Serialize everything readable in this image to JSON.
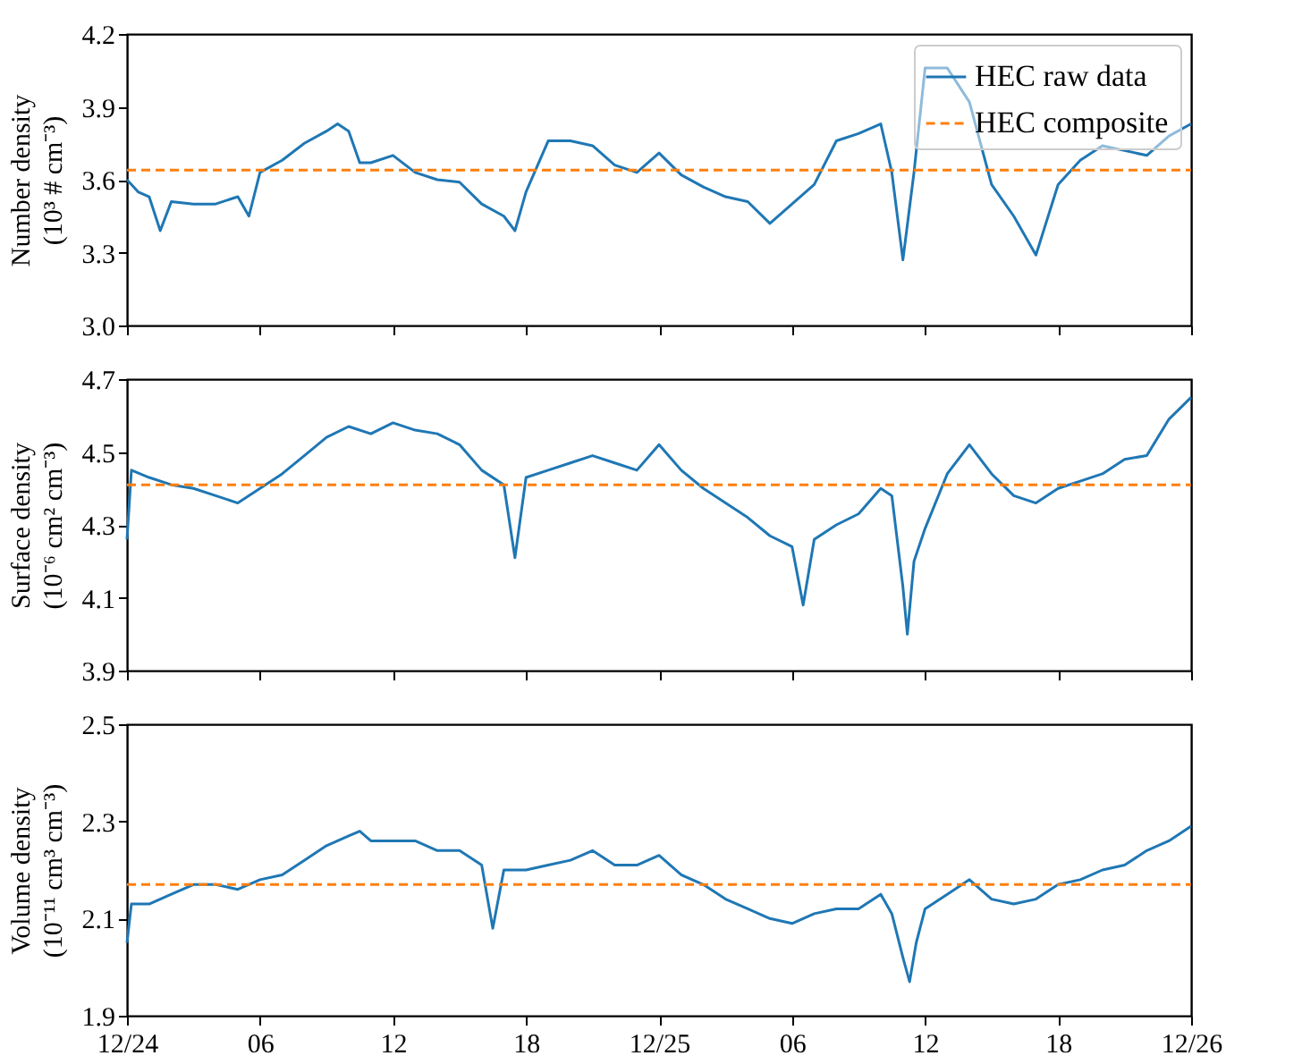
{
  "chart_data": [
    {
      "type": "line",
      "ylabel": "Number density\n(10³ # cm⁻³)",
      "xlim": [
        "--12-24T00:00",
        "--12-26T00:00"
      ],
      "xticks": [
        {
          "value": "--12-24T00:00",
          "label": "12/24"
        },
        {
          "value": "--12-24T06:00",
          "label": "06"
        },
        {
          "value": "--12-24T12:00",
          "label": "12"
        },
        {
          "value": "--12-24T18:00",
          "label": "18"
        },
        {
          "value": "--12-25T00:00",
          "label": "12/25"
        },
        {
          "value": "--12-25T06:00",
          "label": "06"
        },
        {
          "value": "--12-25T12:00",
          "label": "12"
        },
        {
          "value": "--12-25T18:00",
          "label": "18"
        },
        {
          "value": "--12-26T00:00",
          "label": "12/26"
        }
      ],
      "ylim": [
        3.0,
        4.2
      ],
      "yticks": [
        {
          "value": 3,
          "label": "3.0"
        },
        3.3,
        3.6,
        3.9,
        4.2
      ],
      "tick_labels": "y",
      "legend": "top right",
      "series": [
        {
          "name": "HEC raw data",
          "color": "#1f77b4",
          "line_style": "solid",
          "x": [
            "--12-24T00:00",
            "--12-24T00:30",
            "--12-24T01:00",
            "--12-24T01:30",
            "--12-24T02:00",
            "--12-24T03:00",
            "--12-24T04:00",
            "--12-24T05:00",
            "--12-24T05:30",
            "--12-24T06:00",
            "--12-24T07:00",
            "--12-24T08:00",
            "--12-24T09:00",
            "--12-24T09:30",
            "--12-24T10:00",
            "--12-24T10:30",
            "--12-24T11:00",
            "--12-24T12:00",
            "--12-24T13:00",
            "--12-24T14:00",
            "--12-24T15:00",
            "--12-24T16:00",
            "--12-24T17:00",
            "--12-24T17:30",
            "--12-24T18:00",
            "--12-24T19:00",
            "--12-24T20:00",
            "--12-24T21:00",
            "--12-24T22:00",
            "--12-24T23:00",
            "--12-25T00:00",
            "--12-25T01:00",
            "--12-25T02:00",
            "--12-25T03:00",
            "--12-25T04:00",
            "--12-25T05:00",
            "--12-25T06:00",
            "--12-25T07:00",
            "--12-25T08:00",
            "--12-25T09:00",
            "--12-25T10:00",
            "--12-25T10:30",
            "--12-25T11:00",
            "--12-25T11:30",
            "--12-25T12:00",
            "--12-25T13:00",
            "--12-25T14:00",
            "--12-25T15:00",
            "--12-25T16:00",
            "--12-25T17:00",
            "--12-25T18:00",
            "--12-25T19:00",
            "--12-25T20:00",
            "--12-25T21:00",
            "--12-25T22:00",
            "--12-25T23:00",
            "--12-26T00:00"
          ],
          "values": [
            3.6,
            3.55,
            3.53,
            3.39,
            3.51,
            3.5,
            3.5,
            3.53,
            3.45,
            3.63,
            3.68,
            3.75,
            3.8,
            3.83,
            3.8,
            3.67,
            3.67,
            3.7,
            3.63,
            3.6,
            3.59,
            3.5,
            3.45,
            3.39,
            3.55,
            3.76,
            3.76,
            3.74,
            3.66,
            3.63,
            3.71,
            3.62,
            3.57,
            3.53,
            3.51,
            3.42,
            3.5,
            3.58,
            3.76,
            3.79,
            3.83,
            3.63,
            3.27,
            3.63,
            4.06,
            4.06,
            3.92,
            3.58,
            3.45,
            3.29,
            3.58,
            3.68,
            3.74,
            3.72,
            3.7,
            3.78,
            3.83
          ]
        },
        {
          "name": "HEC composite",
          "color": "#ff7f0e",
          "line_style": "dashed",
          "x": [
            "--12-24T00:00",
            "--12-26T00:00"
          ],
          "values": [
            3.64,
            3.64
          ]
        }
      ]
    },
    {
      "type": "line",
      "ylabel": "Surface density\n(10⁻⁶ cm² cm⁻³)",
      "xlim": [
        "--12-24T00:00",
        "--12-26T00:00"
      ],
      "xticks": [
        {
          "value": "--12-24T00:00",
          "label": "12/24"
        },
        {
          "value": "--12-24T06:00",
          "label": "06"
        },
        {
          "value": "--12-24T12:00",
          "label": "12"
        },
        {
          "value": "--12-24T18:00",
          "label": "18"
        },
        {
          "value": "--12-25T00:00",
          "label": "12/25"
        },
        {
          "value": "--12-25T06:00",
          "label": "06"
        },
        {
          "value": "--12-25T12:00",
          "label": "12"
        },
        {
          "value": "--12-25T18:00",
          "label": "18"
        },
        {
          "value": "--12-26T00:00",
          "label": "12/26"
        }
      ],
      "ylim": [
        3.9,
        4.7
      ],
      "yticks": [
        3.9,
        4.1,
        4.3,
        4.5,
        4.7
      ],
      "tick_labels": "y",
      "series": [
        {
          "color": "#1f77b4",
          "line_style": "solid",
          "x": [
            "--12-24T00:00",
            "--12-24T00:12",
            "--12-24T01:00",
            "--12-24T02:00",
            "--12-24T03:00",
            "--12-24T04:00",
            "--12-24T05:00",
            "--12-24T06:00",
            "--12-24T07:00",
            "--12-24T08:00",
            "--12-24T09:00",
            "--12-24T10:00",
            "--12-24T11:00",
            "--12-24T12:00",
            "--12-24T13:00",
            "--12-24T14:00",
            "--12-24T15:00",
            "--12-24T16:00",
            "--12-24T17:00",
            "--12-24T17:30",
            "--12-24T18:00",
            "--12-24T19:00",
            "--12-24T20:00",
            "--12-24T21:00",
            "--12-24T22:00",
            "--12-24T23:00",
            "--12-25T00:00",
            "--12-25T01:00",
            "--12-25T02:00",
            "--12-25T03:00",
            "--12-25T04:00",
            "--12-25T05:00",
            "--12-25T06:00",
            "--12-25T06:30",
            "--12-25T07:00",
            "--12-25T08:00",
            "--12-25T09:00",
            "--12-25T10:00",
            "--12-25T10:30",
            "--12-25T11:00",
            "--12-25T11:12",
            "--12-25T11:30",
            "--12-25T12:00",
            "--12-25T13:00",
            "--12-25T14:00",
            "--12-25T15:00",
            "--12-25T16:00",
            "--12-25T17:00",
            "--12-25T18:00",
            "--12-25T19:00",
            "--12-25T20:00",
            "--12-25T21:00",
            "--12-25T22:00",
            "--12-25T23:00",
            "--12-26T00:00"
          ],
          "values": [
            4.26,
            4.45,
            4.43,
            4.41,
            4.4,
            4.38,
            4.36,
            4.4,
            4.44,
            4.49,
            4.54,
            4.57,
            4.55,
            4.58,
            4.56,
            4.55,
            4.52,
            4.45,
            4.41,
            4.21,
            4.43,
            4.45,
            4.47,
            4.49,
            4.47,
            4.45,
            4.52,
            4.45,
            4.4,
            4.36,
            4.32,
            4.27,
            4.24,
            4.08,
            4.26,
            4.3,
            4.33,
            4.4,
            4.38,
            4.13,
            4.0,
            4.2,
            4.29,
            4.44,
            4.52,
            4.44,
            4.38,
            4.36,
            4.4,
            4.42,
            4.44,
            4.48,
            4.49,
            4.59,
            4.65
          ]
        },
        {
          "color": "#ff7f0e",
          "line_style": "dashed",
          "x": [
            "--12-24T00:00",
            "--12-26T00:00"
          ],
          "values": [
            4.41,
            4.41
          ]
        }
      ]
    },
    {
      "type": "line",
      "ylabel": "Volume density\n(10⁻¹¹ cm³ cm⁻³)",
      "xlim": [
        "--12-24T00:00",
        "--12-26T00:00"
      ],
      "xticks": [
        {
          "value": "--12-24T00:00",
          "label": "12/24"
        },
        {
          "value": "--12-24T06:00",
          "label": "06"
        },
        {
          "value": "--12-24T12:00",
          "label": "12"
        },
        {
          "value": "--12-24T18:00",
          "label": "18"
        },
        {
          "value": "--12-25T00:00",
          "label": "12/25"
        },
        {
          "value": "--12-25T06:00",
          "label": "06"
        },
        {
          "value": "--12-25T12:00",
          "label": "12"
        },
        {
          "value": "--12-25T18:00",
          "label": "18"
        },
        {
          "value": "--12-26T00:00",
          "label": "12/26"
        }
      ],
      "ylim": [
        1.9,
        2.5
      ],
      "yticks": [
        1.9,
        2.1,
        2.3,
        2.5
      ],
      "series": [
        {
          "color": "#1f77b4",
          "line_style": "solid",
          "x": [
            "--12-24T00:00",
            "--12-24T00:12",
            "--12-24T01:00",
            "--12-24T02:00",
            "--12-24T03:00",
            "--12-24T04:00",
            "--12-24T05:00",
            "--12-24T06:00",
            "--12-24T07:00",
            "--12-24T08:00",
            "--12-24T09:00",
            "--12-24T10:00",
            "--12-24T10:30",
            "--12-24T11:00",
            "--12-24T12:00",
            "--12-24T13:00",
            "--12-24T14:00",
            "--12-24T15:00",
            "--12-24T16:00",
            "--12-24T16:30",
            "--12-24T17:00",
            "--12-24T18:00",
            "--12-24T19:00",
            "--12-24T20:00",
            "--12-24T21:00",
            "--12-24T22:00",
            "--12-24T23:00",
            "--12-25T00:00",
            "--12-25T01:00",
            "--12-25T02:00",
            "--12-25T03:00",
            "--12-25T04:00",
            "--12-25T05:00",
            "--12-25T06:00",
            "--12-25T07:00",
            "--12-25T08:00",
            "--12-25T09:00",
            "--12-25T10:00",
            "--12-25T10:30",
            "--12-25T11:00",
            "--12-25T11:18",
            "--12-25T11:36",
            "--12-25T12:00",
            "--12-25T13:00",
            "--12-25T14:00",
            "--12-25T15:00",
            "--12-25T16:00",
            "--12-25T17:00",
            "--12-25T18:00",
            "--12-25T19:00",
            "--12-25T20:00",
            "--12-25T21:00",
            "--12-25T22:00",
            "--12-25T23:00",
            "--12-26T00:00"
          ],
          "values": [
            2.05,
            2.13,
            2.13,
            2.15,
            2.17,
            2.17,
            2.16,
            2.18,
            2.19,
            2.22,
            2.25,
            2.27,
            2.28,
            2.26,
            2.26,
            2.26,
            2.24,
            2.24,
            2.21,
            2.08,
            2.2,
            2.2,
            2.21,
            2.22,
            2.24,
            2.21,
            2.21,
            2.23,
            2.19,
            2.17,
            2.14,
            2.12,
            2.1,
            2.09,
            2.11,
            2.12,
            2.12,
            2.15,
            2.11,
            2.02,
            1.97,
            2.05,
            2.12,
            2.15,
            2.18,
            2.14,
            2.13,
            2.14,
            2.17,
            2.18,
            2.2,
            2.21,
            2.24,
            2.26,
            2.29
          ]
        },
        {
          "color": "#ff7f0e",
          "line_style": "dashed",
          "x": [
            "--12-24T00:00",
            "--12-26T00:00"
          ],
          "values": [
            2.17,
            2.17
          ]
        }
      ]
    }
  ]
}
